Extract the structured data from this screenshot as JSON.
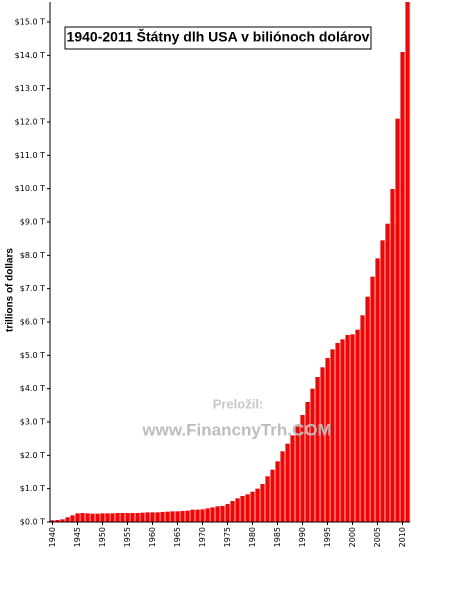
{
  "chart_data": {
    "type": "bar",
    "title": "1940-2011 Štátny dlh USA v biliónoch dolárov",
    "y_label": "trillions of dollars",
    "annotations": [
      "Preložil:",
      "www.FinancnyTrh.COM"
    ],
    "color": "#ff0000",
    "x": [
      1940,
      1941,
      1942,
      1943,
      1944,
      1945,
      1946,
      1947,
      1948,
      1949,
      1950,
      1951,
      1952,
      1953,
      1954,
      1955,
      1956,
      1957,
      1958,
      1959,
      1960,
      1961,
      1962,
      1963,
      1964,
      1965,
      1966,
      1967,
      1968,
      1969,
      1970,
      1971,
      1972,
      1973,
      1974,
      1975,
      1976,
      1977,
      1978,
      1979,
      1980,
      1981,
      1982,
      1983,
      1984,
      1985,
      1986,
      1987,
      1988,
      1989,
      1990,
      1991,
      1992,
      1993,
      1994,
      1995,
      1996,
      1997,
      1998,
      1999,
      2000,
      2001,
      2002,
      2003,
      2004,
      2005,
      2006,
      2007,
      2008,
      2009,
      2010,
      2011
    ],
    "values": [
      0.05,
      0.06,
      0.08,
      0.14,
      0.2,
      0.26,
      0.27,
      0.26,
      0.25,
      0.25,
      0.26,
      0.26,
      0.26,
      0.27,
      0.27,
      0.27,
      0.27,
      0.27,
      0.28,
      0.29,
      0.29,
      0.29,
      0.3,
      0.31,
      0.32,
      0.32,
      0.33,
      0.34,
      0.37,
      0.37,
      0.38,
      0.41,
      0.44,
      0.47,
      0.48,
      0.54,
      0.63,
      0.71,
      0.78,
      0.83,
      0.91,
      1.0,
      1.14,
      1.37,
      1.57,
      1.82,
      2.12,
      2.35,
      2.6,
      2.87,
      3.21,
      3.6,
      4.0,
      4.35,
      4.64,
      4.92,
      5.18,
      5.37,
      5.48,
      5.61,
      5.63,
      5.77,
      6.2,
      6.76,
      7.36,
      7.91,
      8.45,
      8.95,
      9.99,
      12.1,
      14.1,
      15.6
    ],
    "xlim": [
      1939.5,
      2011.5
    ],
    "xticks": [
      1940,
      1945,
      1950,
      1955,
      1960,
      1965,
      1970,
      1975,
      1980,
      1985,
      1990,
      1995,
      2000,
      2005,
      2010
    ],
    "ylim": [
      0,
      15.6
    ],
    "yticks": [
      {
        "value": 0,
        "label": "$0.0 T"
      },
      {
        "value": 1,
        "label": "$1.0 T"
      },
      {
        "value": 2,
        "label": "$2.0 T"
      },
      {
        "value": 3,
        "label": "$3.0 T"
      },
      {
        "value": 4,
        "label": "$4.0 T"
      },
      {
        "value": 5,
        "label": "$5.0 T"
      },
      {
        "value": 6,
        "label": "$6.0 T"
      },
      {
        "value": 7,
        "label": "$7.0 T"
      },
      {
        "value": 8,
        "label": "$8.0 T"
      },
      {
        "value": 9,
        "label": "$9.0 T"
      },
      {
        "value": 10,
        "label": "$10.0 T"
      },
      {
        "value": 11,
        "label": "$11.0 T"
      },
      {
        "value": 12,
        "label": "$12.0 T"
      },
      {
        "value": 13,
        "label": "$13.0 T"
      },
      {
        "value": 14,
        "label": "$14.0 T"
      },
      {
        "value": 15,
        "label": "$15.0 T"
      }
    ]
  }
}
